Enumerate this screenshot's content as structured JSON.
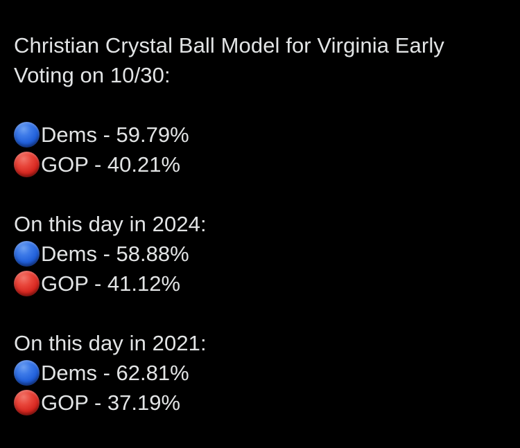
{
  "page": {
    "background_color": "#000000",
    "text_color": "#e2e4e5"
  },
  "post": {
    "title_line1": "Christian Crystal Ball Model for Virginia Early",
    "title_line2": "Voting on 10/30:",
    "colors": {
      "dems_circle": "#2a6ded",
      "gop_circle": "#df2c23"
    },
    "sections": [
      {
        "heading": "",
        "rows": [
          {
            "icon": "blue-circle-emoji",
            "party": "Dems",
            "value": "59.79%",
            "text": "Dems - 59.79%"
          },
          {
            "icon": "red-circle-emoji",
            "party": "GOP",
            "value": "40.21%",
            "text": "GOP - 40.21%"
          }
        ]
      },
      {
        "heading": "On this day in 2024:",
        "rows": [
          {
            "icon": "blue-circle-emoji",
            "party": "Dems",
            "value": "58.88%",
            "text": "Dems - 58.88%"
          },
          {
            "icon": "red-circle-emoji",
            "party": "GOP",
            "value": "41.12%",
            "text": "GOP - 41.12%"
          }
        ]
      },
      {
        "heading": "On this day in 2021:",
        "rows": [
          {
            "icon": "blue-circle-emoji",
            "party": "Dems",
            "value": "62.81%",
            "text": "Dems - 62.81%"
          },
          {
            "icon": "red-circle-emoji",
            "party": "GOP",
            "value": "37.19%",
            "text": "GOP - 37.19%"
          }
        ]
      }
    ]
  }
}
